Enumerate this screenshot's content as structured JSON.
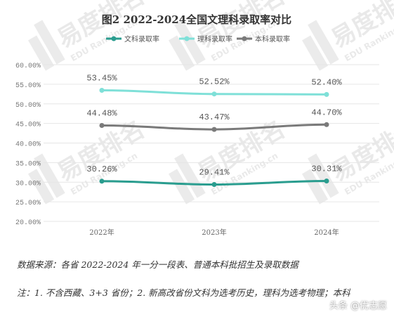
{
  "chart_data": {
    "type": "line",
    "title": "图2 2022-2024全国文理科录取率对比",
    "categories": [
      "2022年",
      "2023年",
      "2024年"
    ],
    "series": [
      {
        "name": "文科录取率",
        "values": [
          30.26,
          29.41,
          30.31
        ],
        "labels": [
          "30.26%",
          "29.41%",
          "30.31%"
        ],
        "color": "#2a9d8f"
      },
      {
        "name": "理科录取率",
        "values": [
          53.45,
          52.52,
          52.4
        ],
        "labels": [
          "53.45%",
          "52.52%",
          "52.40%"
        ],
        "color": "#7fe0d8"
      },
      {
        "name": "本科录取率",
        "values": [
          44.48,
          43.47,
          44.7
        ],
        "labels": [
          "44.48%",
          "43.47%",
          "44.70%"
        ],
        "color": "#7a7a7a"
      }
    ],
    "ylim": [
      20,
      60
    ],
    "yticks": [
      "20.00%",
      "25.00%",
      "30.00%",
      "35.00%",
      "40.00%",
      "45.00%",
      "50.00%",
      "55.00%",
      "60.00%"
    ],
    "grid": true,
    "legend": "top-center"
  },
  "source_note": "数据来源：各省 2022-2024 年一分一段表、普通本科批招生及录取数据",
  "footnote": "注：1. 不含西藏、3+3 省份；2. 新高改省份文科为选考历史，理科为选考物理；本科",
  "credit": "头条 @优志愿",
  "watermark": {
    "logo_text": "易度排名",
    "sub_text": "EDU Ranking.cn"
  }
}
